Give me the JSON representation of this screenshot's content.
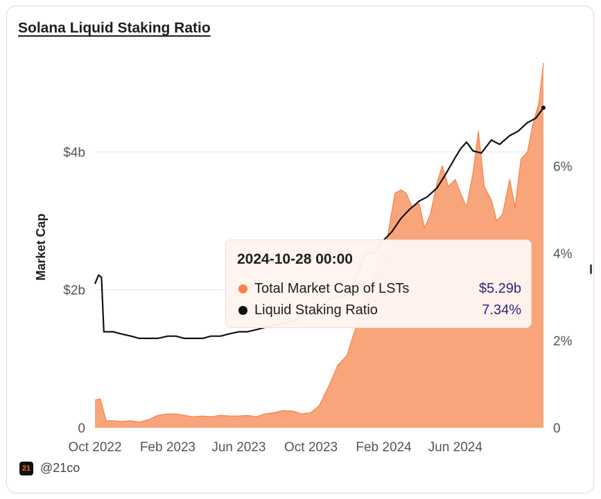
{
  "title": "Solana Liquid Staking Ratio",
  "footer": {
    "logo": "21",
    "handle": "@21co"
  },
  "tooltip": {
    "date": "2024-10-28 00:00",
    "rows": [
      {
        "label": "Total Market Cap of LSTs",
        "value": "$5.29b",
        "color": "#f5814a"
      },
      {
        "label": "Liquid Staking Ratio",
        "value": "7.34%",
        "color": "#111111"
      }
    ]
  },
  "chart_data": {
    "type": "area",
    "x_tick_labels": [
      "Oct 2022",
      "Feb 2023",
      "Jun 2023",
      "Oct 2023",
      "Feb 2024",
      "Jun 2024"
    ],
    "x_ticks": [
      "2022-10-01",
      "2023-02-01",
      "2023-06-01",
      "2023-10-01",
      "2024-02-01",
      "2024-06-01"
    ],
    "x_range": [
      "2022-10-01",
      "2024-10-28"
    ],
    "y_left": {
      "label": "Market Cap",
      "tick_labels": [
        "0",
        "$2b",
        "$4b"
      ],
      "ticks": [
        0,
        2,
        4
      ],
      "range": [
        0,
        5.5
      ],
      "unit": "billion USD"
    },
    "y_right": {
      "tick_labels": [
        "0",
        "2%",
        "4%",
        "6%"
      ],
      "ticks": [
        0,
        2,
        4,
        6
      ],
      "range": [
        0,
        8.7
      ],
      "unit": "%"
    },
    "grid": true,
    "series": [
      {
        "name": "Total Market Cap of LSTs",
        "kind": "area",
        "axis": "left",
        "color": "#f5814a",
        "fill": "#f9a57b",
        "x": [
          "2022-10-01",
          "2022-10-10",
          "2022-10-20",
          "2022-11-01",
          "2022-11-15",
          "2022-12-01",
          "2022-12-15",
          "2023-01-01",
          "2023-01-15",
          "2023-02-01",
          "2023-02-15",
          "2023-03-01",
          "2023-03-15",
          "2023-04-01",
          "2023-04-15",
          "2023-05-01",
          "2023-05-15",
          "2023-06-01",
          "2023-06-15",
          "2023-07-01",
          "2023-07-15",
          "2023-08-01",
          "2023-08-15",
          "2023-09-01",
          "2023-09-15",
          "2023-10-01",
          "2023-10-15",
          "2023-11-01",
          "2023-11-15",
          "2023-12-01",
          "2023-12-10",
          "2023-12-20",
          "2024-01-01",
          "2024-01-10",
          "2024-01-20",
          "2024-02-01",
          "2024-02-10",
          "2024-02-20",
          "2024-03-01",
          "2024-03-10",
          "2024-03-20",
          "2024-04-01",
          "2024-04-10",
          "2024-04-20",
          "2024-05-01",
          "2024-05-10",
          "2024-05-20",
          "2024-06-01",
          "2024-06-10",
          "2024-06-20",
          "2024-07-01",
          "2024-07-10",
          "2024-07-20",
          "2024-08-01",
          "2024-08-10",
          "2024-08-20",
          "2024-09-01",
          "2024-09-10",
          "2024-09-20",
          "2024-10-01",
          "2024-10-10",
          "2024-10-20",
          "2024-10-28"
        ],
        "values": [
          0.4,
          0.42,
          0.1,
          0.1,
          0.09,
          0.1,
          0.08,
          0.12,
          0.18,
          0.2,
          0.2,
          0.18,
          0.16,
          0.17,
          0.16,
          0.18,
          0.17,
          0.17,
          0.18,
          0.16,
          0.2,
          0.22,
          0.25,
          0.24,
          0.2,
          0.22,
          0.32,
          0.62,
          0.9,
          1.05,
          1.3,
          1.55,
          1.9,
          2.1,
          2.25,
          2.4,
          2.9,
          3.4,
          3.45,
          3.4,
          3.2,
          3.25,
          2.9,
          3.1,
          3.55,
          3.8,
          3.5,
          3.6,
          3.4,
          3.2,
          3.7,
          4.3,
          3.5,
          3.3,
          3.0,
          3.1,
          3.6,
          3.2,
          3.9,
          4.0,
          4.4,
          4.7,
          5.29
        ]
      },
      {
        "name": "Liquid Staking Ratio",
        "kind": "line",
        "axis": "right",
        "color": "#111111",
        "x": [
          "2022-10-01",
          "2022-10-07",
          "2022-10-12",
          "2022-10-16",
          "2022-11-01",
          "2022-11-15",
          "2022-12-01",
          "2022-12-15",
          "2023-01-01",
          "2023-01-15",
          "2023-02-01",
          "2023-02-15",
          "2023-03-01",
          "2023-03-15",
          "2023-04-01",
          "2023-04-15",
          "2023-05-01",
          "2023-05-15",
          "2023-06-01",
          "2023-06-15",
          "2023-07-01",
          "2023-07-15",
          "2023-08-01",
          "2023-08-15",
          "2023-09-01",
          "2023-09-15",
          "2023-10-01",
          "2023-10-15",
          "2023-11-01",
          "2023-11-15",
          "2023-12-01",
          "2023-12-15",
          "2024-01-01",
          "2024-01-15",
          "2024-02-01",
          "2024-02-15",
          "2024-03-01",
          "2024-03-15",
          "2024-04-01",
          "2024-04-15",
          "2024-05-01",
          "2024-05-15",
          "2024-06-01",
          "2024-06-10",
          "2024-06-20",
          "2024-07-01",
          "2024-07-15",
          "2024-08-01",
          "2024-08-15",
          "2024-09-01",
          "2024-09-15",
          "2024-10-01",
          "2024-10-15",
          "2024-10-28"
        ],
        "values": [
          3.3,
          3.5,
          3.45,
          2.2,
          2.2,
          2.15,
          2.1,
          2.05,
          2.05,
          2.05,
          2.1,
          2.1,
          2.05,
          2.05,
          2.05,
          2.1,
          2.1,
          2.15,
          2.2,
          2.2,
          2.25,
          2.3,
          2.35,
          2.4,
          2.45,
          2.55,
          2.6,
          2.75,
          2.95,
          3.0,
          3.05,
          3.4,
          4.0,
          4.0,
          4.3,
          4.5,
          4.8,
          5.0,
          5.2,
          5.3,
          5.5,
          5.8,
          6.2,
          6.4,
          6.55,
          6.35,
          6.3,
          6.6,
          6.5,
          6.7,
          6.8,
          7.0,
          7.1,
          7.34
        ]
      }
    ],
    "highlight": {
      "x": "2024-10-28"
    }
  }
}
